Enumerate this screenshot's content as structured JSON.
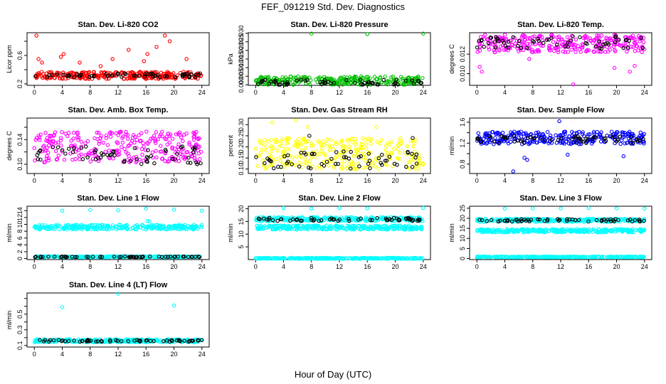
{
  "figure": {
    "title": "FEF_091219  Std. Dev. Diagnostics",
    "xlabel": "Hour of Day (UTC)"
  },
  "colors": {
    "black_marker": "#000000",
    "axis": "#000000"
  },
  "chart_data": [
    {
      "type": "scatter",
      "title": "Stan. Dev. Li-820 CO2",
      "ylabel": "Licor ppm",
      "xlim": [
        0,
        24
      ],
      "x_ticks": [
        0,
        4,
        8,
        12,
        16,
        20,
        24
      ],
      "ylim": [
        0.18,
        0.92
      ],
      "y_ticks": [
        0.2,
        0.4,
        0.6,
        0.8
      ],
      "y_tick_labels": [
        "0.2",
        "",
        "0.6",
        ""
      ],
      "series": [
        {
          "color": "#ff0000",
          "base": 0.32,
          "spread": 0.05,
          "outliers": [
            [
              0.3,
              0.88
            ],
            [
              0.6,
              0.55
            ],
            [
              1.1,
              0.5
            ],
            [
              3.8,
              0.58
            ],
            [
              4.2,
              0.62
            ],
            [
              6.5,
              0.5
            ],
            [
              9.5,
              0.45
            ],
            [
              11.2,
              0.55
            ],
            [
              13.5,
              0.68
            ],
            [
              15.7,
              0.52
            ],
            [
              16.2,
              0.62
            ],
            [
              17.5,
              0.72
            ],
            [
              18.7,
              0.88
            ],
            [
              19.4,
              0.8
            ],
            [
              21.8,
              0.55
            ]
          ]
        },
        {
          "color": "#000000",
          "base": 0.32,
          "spread": 0.03,
          "outliers": []
        }
      ]
    },
    {
      "type": "scatter",
      "title": "Stan. Dev. Li-820 Pressure",
      "ylabel": "kPa",
      "xlim": [
        0,
        24
      ],
      "x_ticks": [
        0,
        4,
        8,
        12,
        16,
        20,
        24
      ],
      "ylim": [
        -0.0003,
        0.0303
      ],
      "y_ticks": [
        0.0,
        0.005,
        0.01,
        0.015,
        0.02,
        0.025,
        0.03
      ],
      "y_tick_labels": [
        "0.000",
        "0.005",
        "0.010",
        "0.015",
        "0.020",
        "0.025",
        "0.030"
      ],
      "series": [
        {
          "color": "#00c000",
          "base": 0.0025,
          "spread": 0.0025,
          "outliers": [
            [
              8.0,
              0.0298
            ],
            [
              16.0,
              0.0295
            ],
            [
              24.0,
              0.0298
            ]
          ]
        },
        {
          "color": "#000000",
          "base": 0.0015,
          "spread": 0.0015,
          "outliers": []
        }
      ]
    },
    {
      "type": "scatter",
      "title": "Stan. Dev. Li-820 Temp.",
      "ylabel": "degrees C",
      "xlim": [
        0,
        24
      ],
      "x_ticks": [
        0,
        4,
        8,
        12,
        16,
        20,
        24
      ],
      "ylim": [
        0.0088,
        0.0142
      ],
      "y_ticks": [
        0.01,
        0.012
      ],
      "y_tick_labels": [
        "0.010",
        "0.012"
      ],
      "series": [
        {
          "color": "#ff00ff",
          "base": 0.0131,
          "spread": 0.0009,
          "outliers": [
            [
              0.4,
              0.0107
            ],
            [
              0.7,
              0.0102
            ],
            [
              7.5,
              0.0115
            ],
            [
              13.8,
              0.0089
            ],
            [
              19.7,
              0.0106
            ],
            [
              21.9,
              0.0102
            ],
            [
              22.6,
              0.0108
            ]
          ]
        },
        {
          "color": "#000000",
          "base": 0.0132,
          "spread": 0.0007,
          "outliers": []
        }
      ]
    },
    {
      "type": "scatter",
      "title": "Stan. Dev. Amb. Box Temp.",
      "ylabel": "degrees C",
      "xlim": [
        0,
        24
      ],
      "x_ticks": [
        0,
        4,
        8,
        12,
        16,
        20,
        24
      ],
      "ylim": [
        0.085,
        0.175
      ],
      "y_ticks": [
        0.1,
        0.12,
        0.14,
        0.16
      ],
      "y_tick_labels": [
        "0.10",
        "",
        "0.14",
        ""
      ],
      "series": [
        {
          "color": "#ff00ff",
          "base": 0.128,
          "spread": 0.025,
          "outliers": []
        },
        {
          "color": "#000000",
          "base": 0.115,
          "spread": 0.015,
          "outliers": []
        }
      ]
    },
    {
      "type": "scatter",
      "title": "Stan. Dev. Gas Stream RH",
      "ylabel": "percent",
      "xlim": [
        0,
        24
      ],
      "x_ticks": [
        0,
        4,
        8,
        12,
        16,
        20,
        24
      ],
      "ylim": [
        0.08,
        0.33
      ],
      "y_ticks": [
        0.1,
        0.15,
        0.2,
        0.25,
        0.3
      ],
      "y_tick_labels": [
        "0.10",
        "0.15",
        "0.20",
        "0.25",
        "0.30"
      ],
      "series": [
        {
          "color": "#ffff00",
          "base": 0.17,
          "spread": 0.07,
          "outliers": [
            [
              2.4,
              0.31
            ],
            [
              5.8,
              0.32
            ],
            [
              7.5,
              0.29
            ],
            [
              17.3,
              0.29
            ]
          ]
        },
        {
          "color": "#000000",
          "base": 0.14,
          "spread": 0.04,
          "outliers": [
            [
              7.7,
              0.25
            ],
            [
              22.5,
              0.24
            ]
          ]
        }
      ]
    },
    {
      "type": "scatter",
      "title": "Stan. Dev. Sample Flow",
      "ylabel": "ml/min",
      "xlim": [
        0,
        24
      ],
      "x_ticks": [
        0,
        4,
        8,
        12,
        16,
        20,
        24
      ],
      "ylim": [
        0.62,
        1.68
      ],
      "y_ticks": [
        0.8,
        1.0,
        1.2,
        1.4,
        1.6
      ],
      "y_tick_labels": [
        "0.8",
        "",
        "1.2",
        "",
        "1.6"
      ],
      "series": [
        {
          "color": "#0000ff",
          "base": 1.3,
          "spread": 0.12,
          "outliers": [
            [
              5.2,
              0.66
            ],
            [
              7.2,
              0.88
            ],
            [
              6.8,
              0.92
            ],
            [
              11.8,
              1.62
            ],
            [
              13.0,
              0.98
            ],
            [
              21.0,
              0.95
            ]
          ]
        },
        {
          "color": "#000000",
          "base": 1.27,
          "spread": 0.07,
          "outliers": []
        }
      ]
    },
    {
      "type": "scatter",
      "title": "Stan. Dev. Line 1 Flow",
      "ylabel": "ml/min",
      "xlim": [
        0,
        24
      ],
      "x_ticks": [
        0,
        4,
        8,
        12,
        16,
        20,
        24
      ],
      "ylim": [
        -0.3,
        15.3
      ],
      "y_ticks": [
        0,
        2,
        4,
        6,
        8,
        10,
        12,
        14
      ],
      "y_tick_labels": [
        "0",
        "2",
        "4",
        "6",
        "8",
        "10",
        "12",
        "14"
      ],
      "series": [
        {
          "color": "#00ffff",
          "base": 9.2,
          "spread": 0.7,
          "outliers": [
            [
              4.0,
              14.0
            ],
            [
              8.0,
              14.2
            ],
            [
              12.0,
              14.1
            ],
            [
              16.0,
              14.6
            ],
            [
              20.0,
              14.3
            ],
            [
              24.0,
              14.0
            ],
            [
              0.2,
              0.6
            ],
            [
              16.2,
              11.0
            ],
            [
              16.5,
              10.8
            ]
          ]
        },
        {
          "color": "#00ffff",
          "base": 0.5,
          "spread": 0.15,
          "outliers": []
        },
        {
          "color": "#000000",
          "base": 0.5,
          "spread": 0.1,
          "outliers": []
        }
      ]
    },
    {
      "type": "scatter",
      "title": "Stan. Dev. Line 2 Flow",
      "ylabel": "ml/min",
      "xlim": [
        0,
        24
      ],
      "x_ticks": [
        0,
        4,
        8,
        12,
        16,
        20,
        24
      ],
      "ylim": [
        0,
        21
      ],
      "y_ticks": [
        5,
        10,
        15,
        20
      ],
      "y_tick_labels": [
        "5",
        "10",
        "15",
        "20"
      ],
      "series": [
        {
          "color": "#00ffff",
          "base": 15.9,
          "spread": 0.8,
          "outliers": [
            [
              4.0,
              20.3
            ],
            [
              8.0,
              20.1
            ],
            [
              12.0,
              20.3
            ],
            [
              16.0,
              20.2
            ],
            [
              24.0,
              20.3
            ]
          ]
        },
        {
          "color": "#00ffff",
          "base": 12.6,
          "spread": 0.8,
          "outliers": []
        },
        {
          "color": "#00ffff",
          "base": 0.5,
          "spread": 0.2,
          "outliers": []
        },
        {
          "color": "#000000",
          "base": 15.8,
          "spread": 0.6,
          "outliers": []
        }
      ]
    },
    {
      "type": "scatter",
      "title": "Stan. Dev. Line 3 Flow",
      "ylabel": "ml/min",
      "xlim": [
        0,
        24
      ],
      "x_ticks": [
        0,
        4,
        8,
        12,
        16,
        20,
        24
      ],
      "ylim": [
        -0.5,
        26
      ],
      "y_ticks": [
        0,
        5,
        10,
        15,
        20,
        25
      ],
      "y_tick_labels": [
        "0",
        "5",
        "10",
        "15",
        "20",
        "25"
      ],
      "series": [
        {
          "color": "#00ffff",
          "base": 19.0,
          "spread": 0.8,
          "outliers": [
            [
              4.0,
              24.8
            ],
            [
              8.0,
              25.0
            ],
            [
              12.0,
              24.9
            ],
            [
              16.0,
              25.1
            ],
            [
              20.0,
              24.9
            ],
            [
              24.0,
              24.8
            ]
          ]
        },
        {
          "color": "#00ffff",
          "base": 13.8,
          "spread": 0.8,
          "outliers": []
        },
        {
          "color": "#00ffff",
          "base": 0.8,
          "spread": 0.2,
          "outliers": []
        },
        {
          "color": "#000000",
          "base": 19.0,
          "spread": 0.6,
          "outliers": []
        }
      ]
    },
    {
      "type": "scatter",
      "title": "Stan. Dev. Line 4 (LT) Flow",
      "ylabel": "ml/min",
      "xlim": [
        0,
        24
      ],
      "x_ticks": [
        0,
        4,
        8,
        12,
        16,
        20,
        24
      ],
      "ylim": [
        0.08,
        0.77
      ],
      "y_ticks": [
        0.1,
        0.2,
        0.3,
        0.4,
        0.5,
        0.6,
        0.7
      ],
      "y_tick_labels": [
        "0.1",
        "",
        "0.3",
        "",
        "0.5",
        "",
        ""
      ],
      "series": [
        {
          "color": "#00ffff",
          "base": 0.16,
          "spread": 0.02,
          "outliers": [
            [
              4.0,
              0.59
            ],
            [
              12.0,
              0.76
            ],
            [
              20.0,
              0.61
            ]
          ]
        },
        {
          "color": "#000000",
          "base": 0.16,
          "spread": 0.012,
          "outliers": []
        }
      ]
    }
  ]
}
